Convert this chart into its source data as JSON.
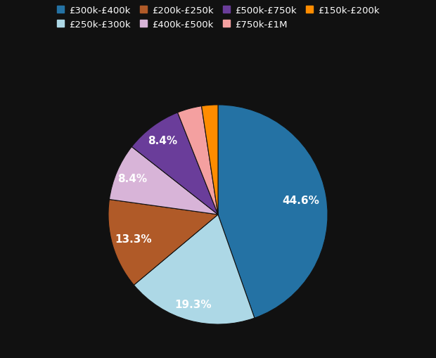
{
  "labels": [
    "£300k-£400k",
    "£250k-£300k",
    "£200k-£250k",
    "£400k-£500k",
    "£500k-£750k",
    "£750k-£1M",
    "£150k-£200k"
  ],
  "values": [
    44.6,
    19.3,
    13.3,
    8.4,
    8.4,
    3.6,
    2.4
  ],
  "colors": [
    "#2472a4",
    "#add8e6",
    "#b05a28",
    "#d8b4d8",
    "#6a3d9a",
    "#f4a0a0",
    "#ff8c00"
  ],
  "label_texts": [
    "44.6%",
    "19.3%",
    "13.3%",
    "8.4%",
    "8.4%",
    "",
    ""
  ],
  "background_color": "#111111",
  "text_color": "#ffffff",
  "legend_labels": [
    "£300k-£400k",
    "£250k-£300k",
    "£200k-£250k",
    "£400k-£500k",
    "£500k-£750k",
    "£750k-£1M",
    "£150k-£200k"
  ],
  "legend_colors": [
    "#2472a4",
    "#add8e6",
    "#b05a28",
    "#d8b4d8",
    "#6a3d9a",
    "#f4a0a0",
    "#ff8c00"
  ],
  "label_radii": [
    0.65,
    0.72,
    0.68,
    0.72,
    0.72,
    0,
    0
  ]
}
